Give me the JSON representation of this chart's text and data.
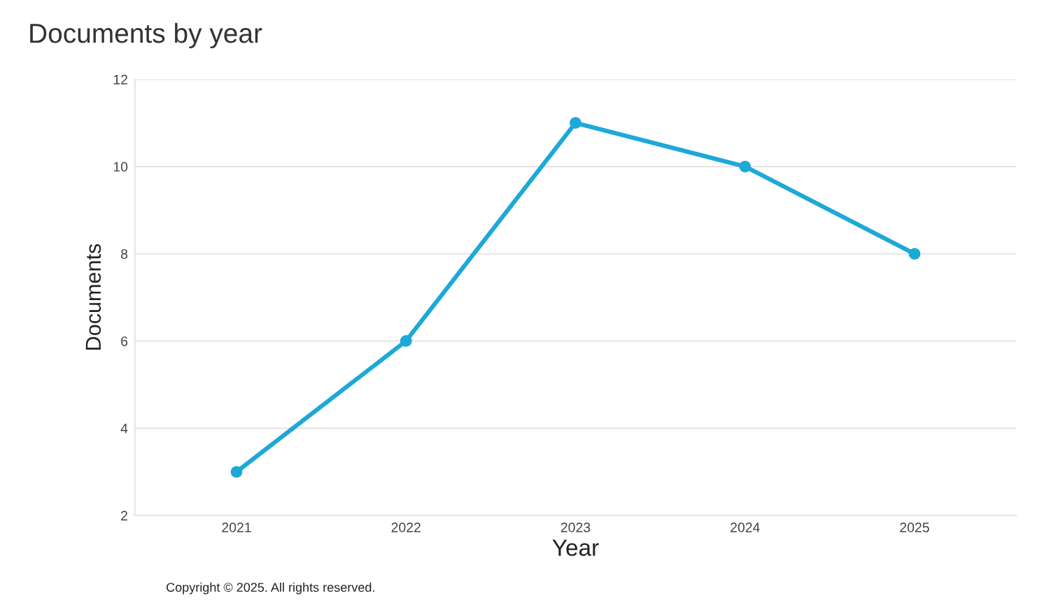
{
  "chart_data": {
    "type": "line",
    "title": "Documents by year",
    "xlabel": "Year",
    "ylabel": "Documents",
    "categories": [
      "2021",
      "2022",
      "2023",
      "2024",
      "2025"
    ],
    "series": [
      {
        "color": "#1da9d8",
        "values": [
          3,
          6,
          11,
          10,
          8
        ]
      }
    ],
    "ylim": [
      2,
      12
    ],
    "yticks": [
      2,
      4,
      6,
      8,
      10,
      12
    ],
    "grid": "y",
    "marker": "circle",
    "line_style": "solid",
    "annotations": [
      "Copyright © 2025. All rights reserved."
    ]
  }
}
